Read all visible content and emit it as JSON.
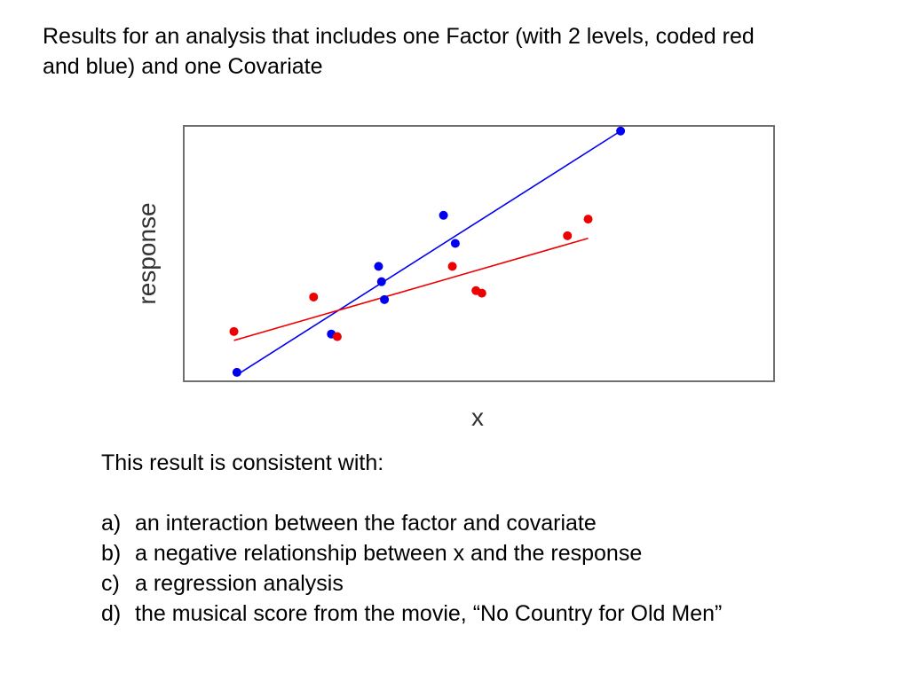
{
  "heading": {
    "line1": "Results for an analysis that includes one Factor (with 2 levels, coded red",
    "line2": "and blue) and one Covariate"
  },
  "chart_data": {
    "type": "scatter",
    "title": "",
    "xlabel": "x",
    "ylabel": "response",
    "xlim": [
      0,
      10
    ],
    "ylim": [
      0,
      10
    ],
    "grid": false,
    "legend": "none",
    "ticks": "none",
    "series": [
      {
        "color": "#0000ee",
        "points": [
          {
            "x": 0.9,
            "y": 0.35
          },
          {
            "x": 2.5,
            "y": 1.85
          },
          {
            "x": 3.3,
            "y": 4.5
          },
          {
            "x": 3.35,
            "y": 3.9
          },
          {
            "x": 3.4,
            "y": 3.2
          },
          {
            "x": 4.4,
            "y": 6.5
          },
          {
            "x": 4.6,
            "y": 5.4
          },
          {
            "x": 7.4,
            "y": 9.8
          }
        ],
        "fit": {
          "x0": 0.9,
          "y0": 0.25,
          "x1": 7.4,
          "y1": 9.8
        }
      },
      {
        "color": "#ee0000",
        "points": [
          {
            "x": 0.85,
            "y": 1.95
          },
          {
            "x": 2.2,
            "y": 3.3
          },
          {
            "x": 2.6,
            "y": 1.75
          },
          {
            "x": 4.55,
            "y": 4.5
          },
          {
            "x": 4.95,
            "y": 3.55
          },
          {
            "x": 5.05,
            "y": 3.45
          },
          {
            "x": 6.5,
            "y": 5.7
          },
          {
            "x": 6.85,
            "y": 6.35
          }
        ],
        "fit": {
          "x0": 0.85,
          "y0": 1.6,
          "x1": 6.85,
          "y1": 5.6
        }
      }
    ]
  },
  "question": {
    "prompt": "This result is consistent with:",
    "options": [
      {
        "letter": "a)",
        "text": "an interaction between the factor and covariate"
      },
      {
        "letter": "b)",
        "text": "a negative relationship between x and the response"
      },
      {
        "letter": "c)",
        "text": "a regression analysis"
      },
      {
        "letter": "d)",
        "text": "the musical score from the movie, “No Country for Old Men”"
      }
    ]
  }
}
